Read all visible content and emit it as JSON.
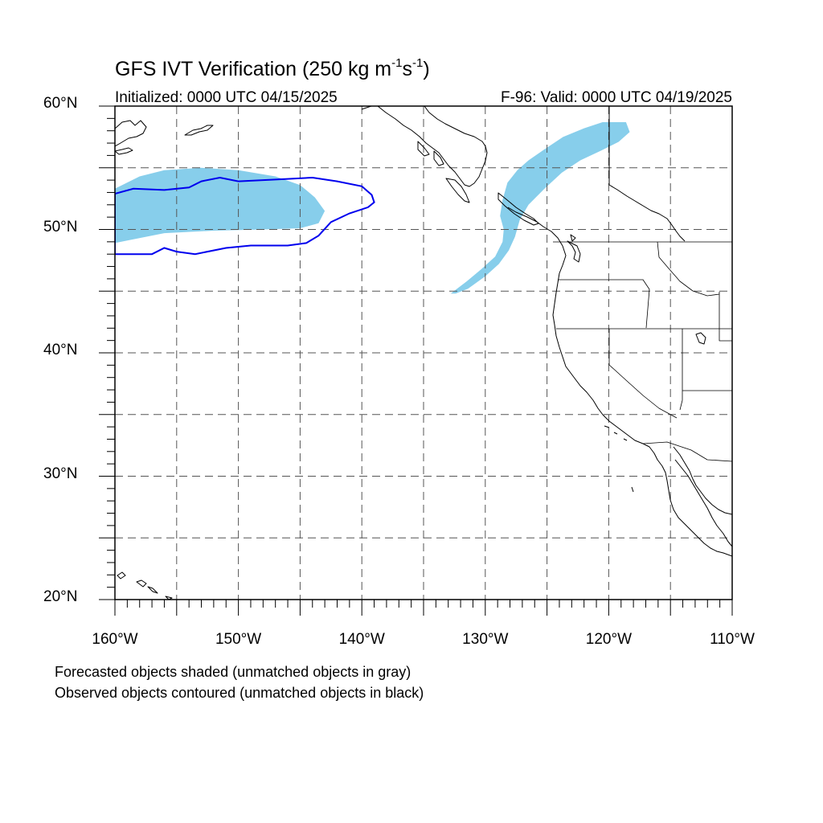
{
  "title": {
    "main_prefix": "GFS IVT Verification (250 kg m",
    "exp1": "-1",
    "mid": "s",
    "exp2": "-1",
    "suffix": ")",
    "initialized": "Initialized: 0000 UTC 04/15/2025",
    "valid": "F-96: Valid: 0000 UTC 04/19/2025"
  },
  "footer": {
    "line1": "Forecasted objects shaded (unmatched objects in gray)",
    "line2": "Observed objects contoured (unmatched objects in black)"
  },
  "axes": {
    "lat_labels": [
      {
        "value": 60,
        "text": "60°N"
      },
      {
        "value": 50,
        "text": "50°N"
      },
      {
        "value": 40,
        "text": "40°N"
      },
      {
        "value": 30,
        "text": "30°N"
      },
      {
        "value": 20,
        "text": "20°N"
      }
    ],
    "lon_labels": [
      {
        "value": -160,
        "text": "160°W"
      },
      {
        "value": -150,
        "text": "150°W"
      },
      {
        "value": -140,
        "text": "140°W"
      },
      {
        "value": -130,
        "text": "130°W"
      },
      {
        "value": -120,
        "text": "120°W"
      },
      {
        "value": -110,
        "text": "110°W"
      }
    ],
    "lat_range": [
      20,
      60
    ],
    "lon_range": [
      -160,
      -110
    ],
    "grid": "dashed every 5 degrees"
  },
  "colors": {
    "forecast_fill": "#87ceeb",
    "observed_contour": "#0000ee",
    "coastline": "#000000",
    "grid": "#555555"
  },
  "objects": {
    "forecast_shaded": [
      {
        "name": "north pacific object",
        "outline_lonlat": [
          [
            -160,
            53.3
          ],
          [
            -158,
            54.3
          ],
          [
            -156,
            54.8
          ],
          [
            -153,
            55.0
          ],
          [
            -150,
            54.8
          ],
          [
            -147,
            54.3
          ],
          [
            -145,
            53.6
          ],
          [
            -143.8,
            52.6
          ],
          [
            -143,
            51.5
          ],
          [
            -143.5,
            50.5
          ],
          [
            -145,
            50.1
          ],
          [
            -148,
            50.0
          ],
          [
            -152,
            49.9
          ],
          [
            -156,
            49.7
          ],
          [
            -159,
            49.1
          ],
          [
            -160,
            48.9
          ]
        ]
      },
      {
        "name": "pacific northwest object",
        "outline_lonlat": [
          [
            -132.8,
            44.8
          ],
          [
            -131.5,
            45.8
          ],
          [
            -130.3,
            46.8
          ],
          [
            -129.2,
            47.8
          ],
          [
            -128.6,
            49.0
          ],
          [
            -128.5,
            50.0
          ],
          [
            -128.8,
            51.1
          ],
          [
            -128.6,
            52.4
          ],
          [
            -128.2,
            53.8
          ],
          [
            -127.4,
            54.8
          ],
          [
            -126.5,
            55.6
          ],
          [
            -125.2,
            56.5
          ],
          [
            -123.7,
            57.5
          ],
          [
            -122.0,
            58.2
          ],
          [
            -120.5,
            58.7
          ],
          [
            -118.6,
            58.7
          ],
          [
            -118.3,
            57.9
          ],
          [
            -119.2,
            57.1
          ],
          [
            -120.6,
            56.4
          ],
          [
            -122.3,
            55.6
          ],
          [
            -123.8,
            54.6
          ],
          [
            -125.2,
            53.3
          ],
          [
            -126.5,
            52.0
          ],
          [
            -127.2,
            50.8
          ],
          [
            -127.6,
            49.4
          ],
          [
            -128.1,
            48.3
          ],
          [
            -128.9,
            47.2
          ],
          [
            -130.0,
            46.2
          ],
          [
            -131.4,
            45.2
          ],
          [
            -132.4,
            44.8
          ]
        ]
      }
    ],
    "observed_contoured": [
      {
        "name": "north pacific observed object",
        "outline_lonlat": [
          [
            -160,
            52.9
          ],
          [
            -158.5,
            53.3
          ],
          [
            -156,
            53.2
          ],
          [
            -154,
            53.4
          ],
          [
            -153,
            53.9
          ],
          [
            -151.5,
            54.2
          ],
          [
            -150,
            53.9
          ],
          [
            -148,
            54.0
          ],
          [
            -146,
            54.1
          ],
          [
            -144,
            54.2
          ],
          [
            -142,
            53.9
          ],
          [
            -140,
            53.5
          ],
          [
            -139.2,
            52.8
          ],
          [
            -139,
            52.2
          ],
          [
            -139.5,
            51.8
          ],
          [
            -141,
            51.3
          ],
          [
            -142.5,
            50.6
          ],
          [
            -143.5,
            49.5
          ],
          [
            -144.5,
            48.9
          ],
          [
            -146,
            48.7
          ],
          [
            -149,
            48.7
          ],
          [
            -151,
            48.5
          ],
          [
            -153.5,
            48.0
          ],
          [
            -155,
            48.2
          ],
          [
            -156,
            48.5
          ],
          [
            -157,
            48.0
          ],
          [
            -160,
            48.0
          ]
        ]
      }
    ]
  }
}
